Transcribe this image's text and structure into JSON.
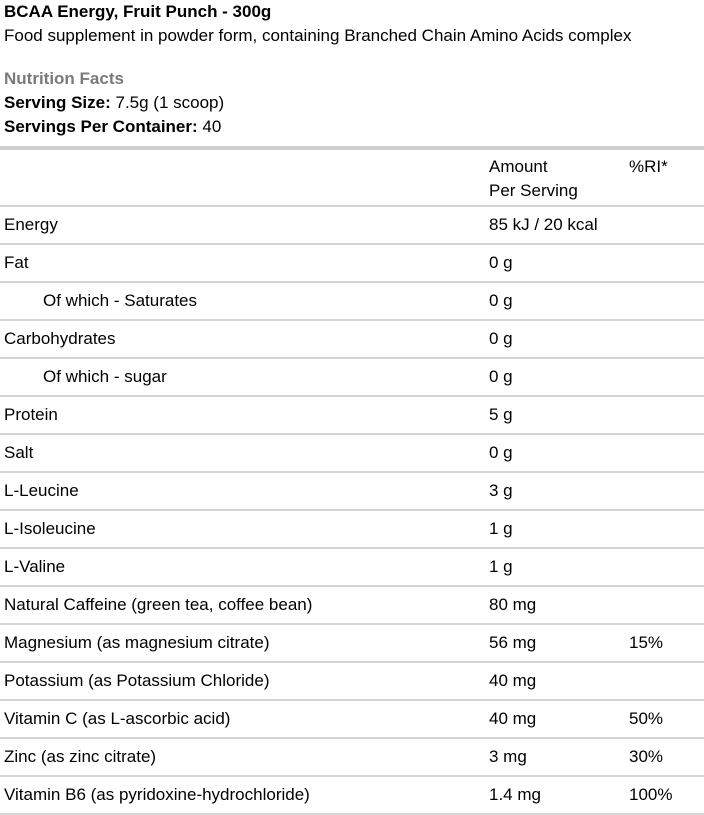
{
  "product": {
    "title": "BCAA Energy, Fruit Punch - 300g",
    "description": "Food supplement in powder form, containing Branched Chain Amino Acids complex"
  },
  "facts": {
    "heading": "Nutrition Facts",
    "serving_size_label": "Serving Size:",
    "serving_size_value": " 7.5g (1 scoop)",
    "servings_per_container_label": "Servings Per Container:",
    "servings_per_container_value": " 40"
  },
  "table": {
    "headers": {
      "name": "",
      "amount_line1": "Amount",
      "amount_line2": "Per Serving",
      "ri": "%RI*"
    },
    "rows": [
      {
        "name": "Energy",
        "amount": "85 kJ / 20 kcal",
        "ri": "",
        "indent": false
      },
      {
        "name": "Fat",
        "amount": "0 g",
        "ri": "",
        "indent": false
      },
      {
        "name": "Of which - Saturates",
        "amount": "0 g",
        "ri": "",
        "indent": true
      },
      {
        "name": "Carbohydrates",
        "amount": "0 g",
        "ri": "",
        "indent": false
      },
      {
        "name": "Of which - sugar",
        "amount": "0 g",
        "ri": "",
        "indent": true
      },
      {
        "name": "Protein",
        "amount": "5 g",
        "ri": "",
        "indent": false
      },
      {
        "name": "Salt",
        "amount": "0 g",
        "ri": "",
        "indent": false
      },
      {
        "name": "L-Leucine",
        "amount": "3 g",
        "ri": "",
        "indent": false
      },
      {
        "name": "L-Isoleucine",
        "amount": "1 g",
        "ri": "",
        "indent": false
      },
      {
        "name": "L-Valine",
        "amount": "1 g",
        "ri": "",
        "indent": false
      },
      {
        "name": "Natural Caffeine (green tea, coffee bean)",
        "amount": "80 mg",
        "ri": "",
        "indent": false
      },
      {
        "name": "Magnesium (as magnesium citrate)",
        "amount": "56 mg",
        "ri": "15%",
        "indent": false
      },
      {
        "name": "Potassium (as Potassium Chloride)",
        "amount": "40 mg",
        "ri": "",
        "indent": false
      },
      {
        "name": "Vitamin C (as L-ascorbic acid)",
        "amount": "40 mg",
        "ri": "50%",
        "indent": false
      },
      {
        "name": "Zinc (as zinc citrate)",
        "amount": "3 mg",
        "ri": "30%",
        "indent": false
      },
      {
        "name": "Vitamin B6 (as pyridoxine-hydrochloride)",
        "amount": "1.4 mg",
        "ri": "100%",
        "indent": false
      }
    ]
  },
  "colors": {
    "heading_gray": "#7a7a7a",
    "rule_gray": "#d4d4d4"
  }
}
